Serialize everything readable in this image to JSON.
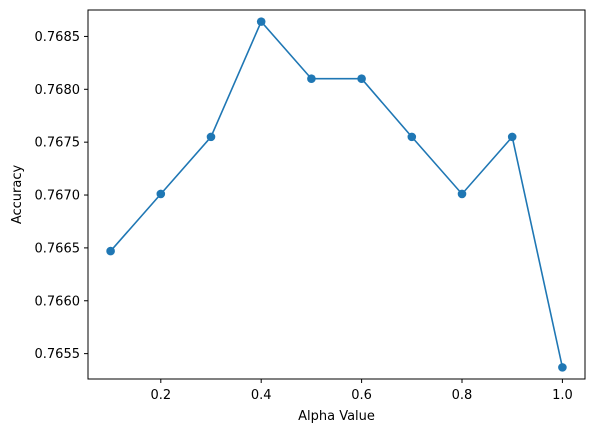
{
  "chart_data": {
    "type": "line",
    "title": "",
    "xlabel": "Alpha Value",
    "ylabel": "Accuracy",
    "x": [
      0.1,
      0.2,
      0.3,
      0.4,
      0.5,
      0.6,
      0.7,
      0.8,
      0.9,
      1.0
    ],
    "series": [
      {
        "values": [
          0.76647,
          0.76701,
          0.76755,
          0.76864,
          0.7681,
          0.7681,
          0.76755,
          0.76701,
          0.76755,
          0.76537
        ]
      }
    ],
    "xlim": [
      0.055,
      1.045
    ],
    "ylim": [
      0.76526,
      0.76875
    ],
    "xticks": [
      0.2,
      0.4,
      0.6,
      0.8,
      1.0
    ],
    "xtick_labels": [
      "0.2",
      "0.4",
      "0.6",
      "0.8",
      "1.0"
    ],
    "yticks": [
      0.7655,
      0.766,
      0.7665,
      0.767,
      0.7675,
      0.768,
      0.7685
    ],
    "ytick_labels": [
      "0.7655",
      "0.7660",
      "0.7665",
      "0.7670",
      "0.7675",
      "0.7680",
      "0.7685"
    ],
    "grid": false,
    "marker": "circle",
    "color": "#1f77b4"
  }
}
